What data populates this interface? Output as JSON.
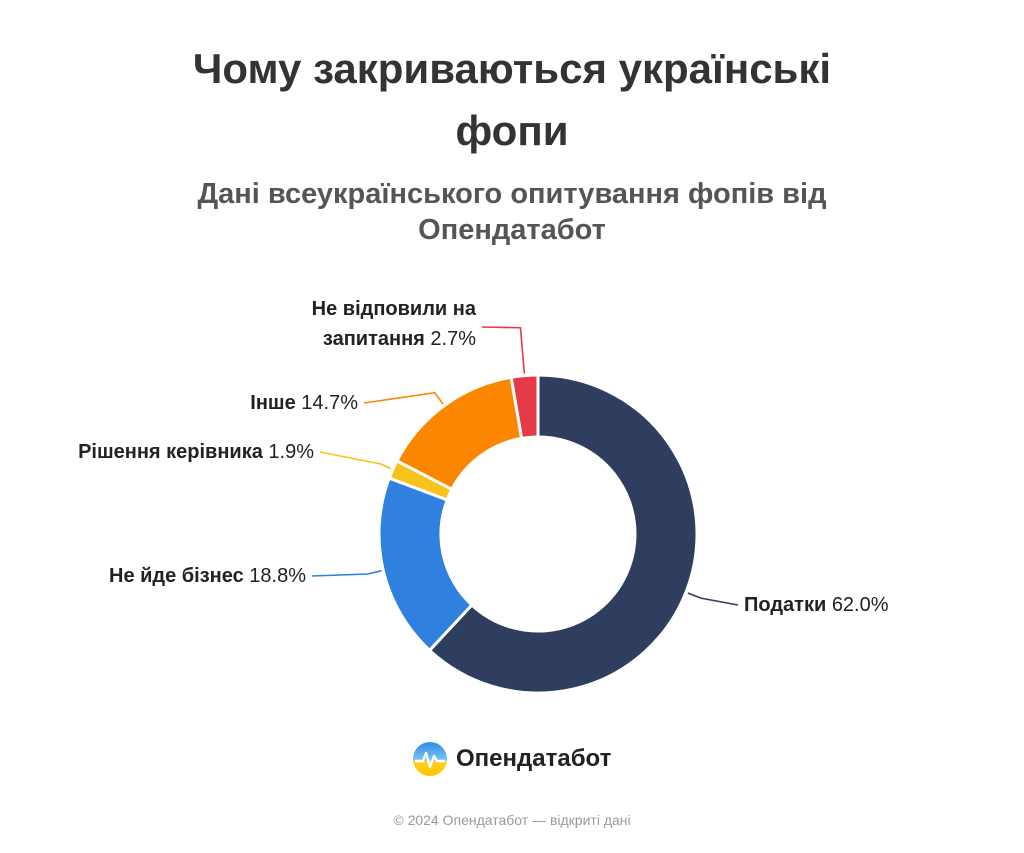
{
  "chart_data": {
    "type": "pie",
    "title": "Чому закриваються українські фопи",
    "subtitle": "Дані всеукраїнського опитування фопів від Опендатабот",
    "slices": [
      {
        "name": "Податки",
        "value": 62.0,
        "display": "62.0%",
        "color": "#2f3d5e"
      },
      {
        "name": "Не йде бізнес",
        "value": 18.8,
        "display": "18.8%",
        "color": "#2f80df"
      },
      {
        "name": "Рішення керівника",
        "value": 1.9,
        "display": "1.9%",
        "color": "#f7c21a"
      },
      {
        "name": "Інше",
        "value": 14.7,
        "display": "14.7%",
        "color": "#fb8700"
      },
      {
        "name": "Не відповили на запитання",
        "value": 2.7,
        "display": "2.7%",
        "color": "#e63a48"
      }
    ]
  },
  "header": {
    "title_line1": "Чому закриваються українські",
    "title_line2": "фопи",
    "subtitle_line1": "Дані всеукраїнського опитування фопів від",
    "subtitle_line2": "Опендатабот"
  },
  "brand": {
    "logo_text": "Опендатабот",
    "icon": "opendatabot-logo-icon"
  },
  "footer": {
    "text": "© 2024 Опендатабот — відкриті дані"
  }
}
